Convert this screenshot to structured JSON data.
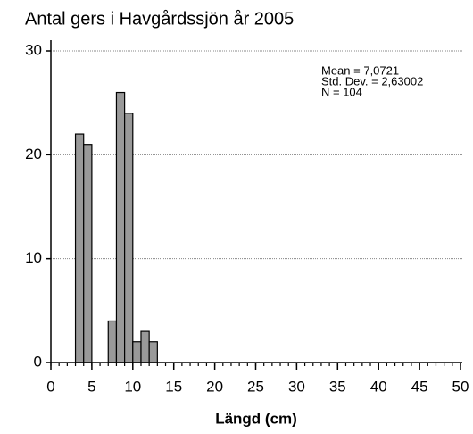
{
  "chart_data": {
    "type": "histogram",
    "title": "Antal gers i Havgårdssjön år 2005",
    "x_label": "Längd (cm)",
    "bins": [
      3,
      4,
      5,
      6,
      7,
      8,
      9,
      10,
      11,
      12,
      13
    ],
    "values": [
      22,
      21,
      0,
      0,
      4,
      26,
      24,
      2,
      3,
      2
    ],
    "color": "#999999",
    "xlim": [
      0,
      50
    ],
    "xticks": [
      0,
      5,
      10,
      15,
      20,
      25,
      30,
      35,
      40,
      45,
      50
    ],
    "minor_xticks": [
      0,
      1,
      2,
      3,
      4,
      5,
      6,
      7,
      8,
      9,
      10,
      11,
      12,
      13,
      14,
      15,
      16,
      17,
      18,
      19,
      20,
      21,
      22,
      23,
      24,
      25,
      26,
      27,
      28,
      29,
      30,
      31,
      32,
      33,
      34,
      35,
      36,
      37,
      38,
      39,
      40,
      41,
      42,
      43,
      44,
      45,
      46,
      47,
      48,
      49,
      50
    ],
    "ylim": [
      0,
      30
    ],
    "yticks": [
      0,
      10,
      20,
      30
    ],
    "grid": true,
    "annotations": [
      "Mean = 7,0721",
      "Std. Dev. = 2,63002",
      "N = 104"
    ]
  }
}
